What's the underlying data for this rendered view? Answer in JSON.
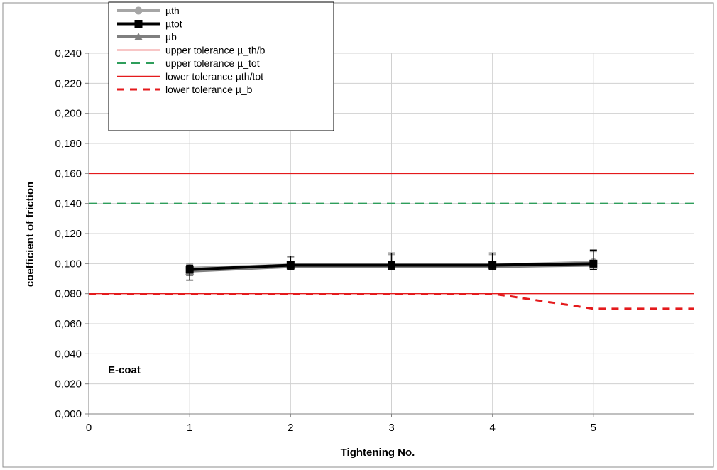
{
  "chart_data": {
    "type": "line",
    "xlabel": "Tightening No.",
    "ylabel": "coefficient of friction",
    "xlim": [
      0,
      6
    ],
    "ylim": [
      0,
      0.24
    ],
    "x_ticks": [
      "0",
      "1",
      "2",
      "3",
      "4",
      "5"
    ],
    "y_ticks": [
      "0,000",
      "0,020",
      "0,040",
      "0,060",
      "0,080",
      "0,100",
      "0,120",
      "0,140",
      "0,160",
      "0,180",
      "0,200",
      "0,220",
      "0,240"
    ],
    "grid": true,
    "legend_position": "top-left",
    "annotation": "E-coat",
    "series": [
      {
        "name": "µth",
        "color": "#a6a6a6",
        "marker": "circle",
        "x": [
          1,
          2,
          3,
          4,
          5
        ],
        "values": [
          0.097,
          0.099,
          0.099,
          0.099,
          0.101
        ],
        "err_upper": [
          0.003,
          0.005,
          0.007,
          0.007,
          0.007
        ],
        "err_lower": [
          0.004,
          0.003,
          0.003,
          0.003,
          0.004
        ]
      },
      {
        "name": "µtot",
        "color": "#000000",
        "marker": "square",
        "x": [
          1,
          2,
          3,
          4,
          5
        ],
        "values": [
          0.096,
          0.099,
          0.099,
          0.099,
          0.1
        ],
        "err_upper": [
          0.003,
          0.006,
          0.008,
          0.008,
          0.009
        ],
        "err_lower": [
          0.007,
          0.003,
          0.003,
          0.003,
          0.004
        ]
      },
      {
        "name": "µb",
        "color": "#7f7f7f",
        "marker": "triangle",
        "x": [
          1,
          2,
          3,
          4,
          5
        ],
        "values": [
          0.095,
          0.098,
          0.098,
          0.098,
          0.099
        ],
        "err_upper": [
          0.003,
          0.003,
          0.003,
          0.003,
          0.003
        ],
        "err_lower": [
          0.003,
          0.002,
          0.002,
          0.002,
          0.003
        ]
      },
      {
        "name": "upper tolerance µ_th/b",
        "color": "#e41a1c",
        "style": "solid",
        "x": [
          0,
          6
        ],
        "values": [
          0.16,
          0.16
        ]
      },
      {
        "name": "upper tolerance µ_tot",
        "color": "#2e9e5b",
        "style": "dashed",
        "x": [
          0,
          6
        ],
        "values": [
          0.14,
          0.14
        ]
      },
      {
        "name": "lower tolerance µth/tot",
        "color": "#e41a1c",
        "style": "solid",
        "x": [
          0,
          6
        ],
        "values": [
          0.08,
          0.08
        ]
      },
      {
        "name": "lower tolerance µ_b",
        "color": "#e41a1c",
        "style": "dashed-thick",
        "x": [
          0,
          4,
          5,
          6
        ],
        "values": [
          0.08,
          0.08,
          0.07,
          0.07
        ]
      }
    ]
  }
}
